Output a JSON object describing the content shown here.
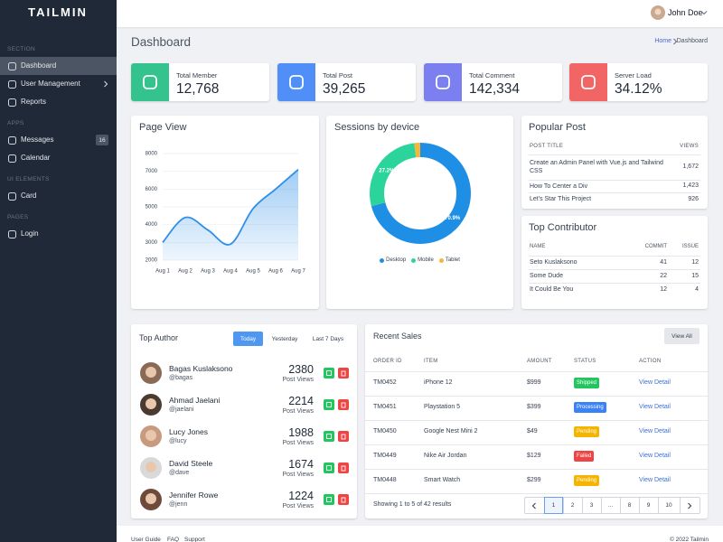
{
  "sidebar": {
    "brand": "TAILMIN",
    "sections": [
      {
        "title": "SECTION",
        "items": [
          {
            "label": "Dashboard",
            "active": true
          },
          {
            "label": "User Management",
            "submenu": true
          },
          {
            "label": "Reports"
          }
        ]
      },
      {
        "title": "APPS",
        "items": [
          {
            "label": "Messages",
            "badge": 16
          },
          {
            "label": "Calendar"
          }
        ]
      },
      {
        "title": "UI ELEMENTS",
        "items": [
          {
            "label": "Card"
          }
        ]
      },
      {
        "title": "PAGES",
        "items": [
          {
            "label": "Login"
          }
        ]
      }
    ]
  },
  "topbar": {
    "user": "John Doe"
  },
  "header": {
    "title": "Dashboard",
    "breadcrumb": [
      "Home",
      "Dashboard"
    ]
  },
  "stats": [
    {
      "label": "Total Member",
      "value": "12,768",
      "color": "#34c38f"
    },
    {
      "label": "Total Post",
      "value": "39,265",
      "color": "#4f8ff7"
    },
    {
      "label": "Total Comment",
      "value": "142,334",
      "color": "#7b7ff0"
    },
    {
      "label": "Server Load",
      "value": "34.12%",
      "color": "#f26565"
    }
  ],
  "chart_data": [
    {
      "type": "line",
      "title": "Page View",
      "categories": [
        "Aug 1",
        "Aug 2",
        "Aug 3",
        "Aug 4",
        "Aug 5",
        "Aug 6",
        "Aug 7"
      ],
      "values": [
        3000,
        4400,
        3700,
        2900,
        4900,
        6000,
        7100
      ],
      "color": "#2f8fe8",
      "area": true,
      "grid": true,
      "ylim": [
        2000,
        8000
      ],
      "yticks": [
        2000,
        3000,
        4000,
        5000,
        6000,
        7000,
        8000
      ]
    },
    {
      "type": "pie",
      "title": "Sessions by device",
      "donut": true,
      "categories": [
        "Desktop",
        "Mobile",
        "Tablet"
      ],
      "values": [
        70.9,
        27.2,
        1.9
      ],
      "value_labels": [
        "70.9%",
        "27.2%",
        null
      ],
      "colors": [
        "#1f8fe5",
        "#2bd49b",
        "#f5b63a"
      ]
    }
  ],
  "popular_post": {
    "title": "Popular Post",
    "columns": [
      "POST TITLE",
      "VIEWS"
    ],
    "rows": [
      [
        "Create an Admin Panel with Vue.js and Tailwind CSS",
        "1,672"
      ],
      [
        "How To Center a Div",
        "1,423"
      ],
      [
        "Let's Star This Project",
        "926"
      ]
    ]
  },
  "top_contributor": {
    "title": "Top Contributor",
    "columns": [
      "NAME",
      "COMMIT",
      "ISSUE"
    ],
    "rows": [
      [
        "Seto Kuslaksono",
        "41",
        "12"
      ],
      [
        "Some Dude",
        "22",
        "15"
      ],
      [
        "It Could Be You",
        "12",
        "4"
      ]
    ]
  },
  "top_author": {
    "title": "Top Author",
    "tabs": [
      "Today",
      "Yesterday",
      "Last 7 Days"
    ],
    "authors": [
      {
        "name": "Bagas Kuslaksono",
        "handle": "@bagas",
        "views": 2380,
        "views_label": "Post Views"
      },
      {
        "name": "Ahmad Jaelani",
        "handle": "@jaelani",
        "views": 2214,
        "views_label": "Post Views"
      },
      {
        "name": "Lucy Jones",
        "handle": "@lucy",
        "views": 1988,
        "views_label": "Post Views"
      },
      {
        "name": "David Steele",
        "handle": "@dave",
        "views": 1674,
        "views_label": "Post Views"
      },
      {
        "name": "Jennifer Rowe",
        "handle": "@jenn",
        "views": 1224,
        "views_label": "Post Views"
      }
    ]
  },
  "recent_sales": {
    "title": "Recent Sales",
    "button": "View All",
    "columns": [
      "ORDER ID",
      "ITEM",
      "AMOUNT",
      "STATUS",
      "ACTION"
    ],
    "rows": [
      {
        "id": "TM0452",
        "item": "iPhone 12",
        "amount": "$999",
        "status": "Shipped",
        "status_color": "#22c55e",
        "action": "View Detail"
      },
      {
        "id": "TM0451",
        "item": "Playstation 5",
        "amount": "$399",
        "status": "Processing",
        "status_color": "#3b82f6",
        "action": "View Detail"
      },
      {
        "id": "TM0450",
        "item": "Google Nest Mini 2",
        "amount": "$49",
        "status": "Pending",
        "status_color": "#f5b400",
        "action": "View Detail"
      },
      {
        "id": "TM0449",
        "item": "Nike Air Jordan",
        "amount": "$129",
        "status": "Failed",
        "status_color": "#ef4444",
        "action": "View Detail"
      },
      {
        "id": "TM0448",
        "item": "Smart Watch",
        "amount": "$299",
        "status": "Pending",
        "status_color": "#f5b400",
        "action": "View Detail"
      }
    ],
    "summary": "Showing 1 to 5 of 42 results",
    "pages": [
      "1",
      "2",
      "3",
      "...",
      "8",
      "9",
      "10"
    ]
  },
  "footer": {
    "links": [
      "User Guide",
      "FAQ",
      "Support"
    ],
    "copyright": "© 2022 Tailmin"
  }
}
